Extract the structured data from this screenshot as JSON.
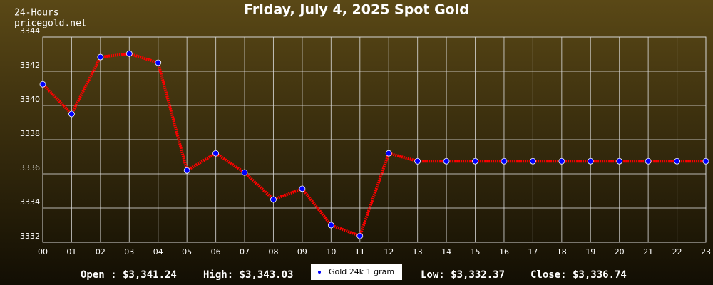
{
  "chart_data": {
    "type": "line",
    "title": "Friday, July 4, 2025 Spot Gold",
    "subtitle": "24-Hours",
    "source": "pricegold.net",
    "categories": [
      "00",
      "01",
      "02",
      "03",
      "04",
      "05",
      "06",
      "07",
      "08",
      "09",
      "10",
      "11",
      "12",
      "13",
      "14",
      "15",
      "16",
      "17",
      "18",
      "19",
      "20",
      "21",
      "22",
      "23"
    ],
    "series": [
      {
        "name": "Gold 24k 1 gram",
        "color": "#ff0000",
        "marker_color": "#0000ff",
        "values": [
          3341.24,
          3339.5,
          3342.83,
          3343.03,
          3342.5,
          3336.2,
          3337.2,
          3336.08,
          3334.5,
          3335.13,
          3333.0,
          3332.37,
          3337.2,
          3336.74,
          3336.74,
          3336.74,
          3336.74,
          3336.74,
          3336.74,
          3336.74,
          3336.74,
          3336.74,
          3336.74,
          3336.74
        ]
      }
    ],
    "ylim": [
      3332,
      3344
    ],
    "yticks": [
      3332,
      3334,
      3336,
      3338,
      3340,
      3342,
      3344
    ],
    "grid": true,
    "legend": "bottom",
    "annotations": [
      "Open : $3,341.24",
      "High: $3,343.03",
      "Low: $3,332.37",
      "Close: $3,336.74"
    ]
  }
}
